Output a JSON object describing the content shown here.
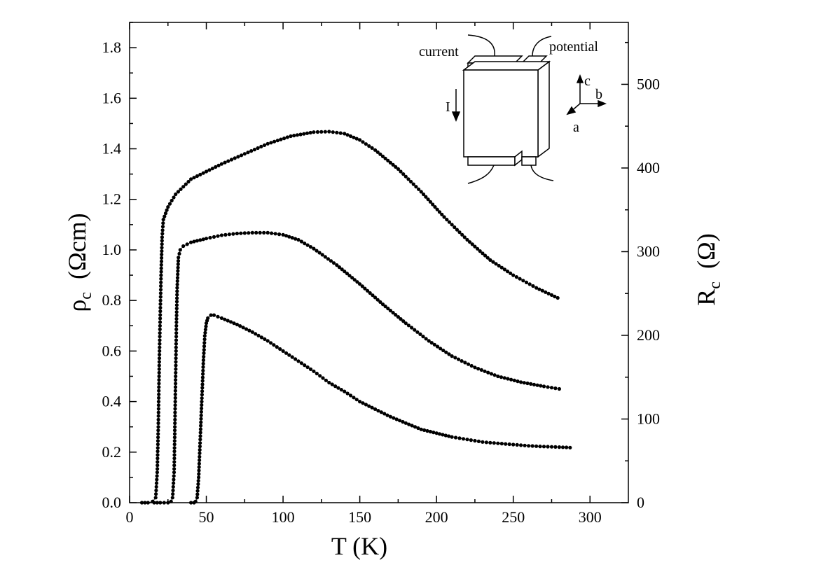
{
  "chart_data": {
    "type": "scatter",
    "xlabel": "T  (K)",
    "ylabel_left": {
      "main": "ρ",
      "sub": "c",
      "units": "(Ωcm)"
    },
    "ylabel_right": {
      "main": "R",
      "sub": "c",
      "units": "(Ω)"
    },
    "xlim": [
      0,
      325
    ],
    "ylim_left": [
      0,
      1.9
    ],
    "ylim_right": [
      0,
      574
    ],
    "x_ticks": [
      0,
      50,
      100,
      150,
      200,
      250,
      300
    ],
    "x_tick_labels": [
      "0",
      "50",
      "100",
      "150",
      "200",
      "250",
      "300"
    ],
    "y_left_ticks": [
      0,
      0.2,
      0.4,
      0.6,
      0.8,
      1.0,
      1.2,
      1.4,
      1.6,
      1.8
    ],
    "y_left_tick_labels": [
      "0.0",
      "0.2",
      "0.4",
      "0.6",
      "0.8",
      "1.0",
      "1.2",
      "1.4",
      "1.6",
      "1.8"
    ],
    "y_right_ticks": [
      0,
      100,
      200,
      300,
      400,
      500
    ],
    "y_right_tick_labels": [
      "0",
      "100",
      "200",
      "300",
      "400",
      "500"
    ],
    "grid": false,
    "marker_color": "#000000",
    "series": [
      {
        "points": [
          [
            8,
            0.0
          ],
          [
            12,
            0.0
          ],
          [
            15,
            0.005
          ],
          [
            17,
            0.02
          ],
          [
            18,
            0.12
          ],
          [
            18.7,
            0.3
          ],
          [
            19.2,
            0.5
          ],
          [
            19.8,
            0.7
          ],
          [
            20.5,
            0.9
          ],
          [
            21.2,
            1.05
          ],
          [
            22,
            1.12
          ],
          [
            25,
            1.17
          ],
          [
            30,
            1.22
          ],
          [
            40,
            1.28
          ],
          [
            50,
            1.31
          ],
          [
            60,
            1.34
          ],
          [
            75,
            1.38
          ],
          [
            90,
            1.42
          ],
          [
            105,
            1.45
          ],
          [
            120,
            1.466
          ],
          [
            130,
            1.468
          ],
          [
            140,
            1.46
          ],
          [
            150,
            1.435
          ],
          [
            160,
            1.395
          ],
          [
            175,
            1.32
          ],
          [
            190,
            1.23
          ],
          [
            205,
            1.13
          ],
          [
            220,
            1.04
          ],
          [
            235,
            0.96
          ],
          [
            250,
            0.9
          ],
          [
            265,
            0.85
          ],
          [
            279,
            0.81
          ]
        ]
      },
      {
        "points": [
          [
            16,
            0.0
          ],
          [
            20,
            0.0
          ],
          [
            25,
            0.0
          ],
          [
            27,
            0.005
          ],
          [
            28,
            0.02
          ],
          [
            29,
            0.12
          ],
          [
            29.5,
            0.3
          ],
          [
            30,
            0.5
          ],
          [
            30.5,
            0.7
          ],
          [
            31,
            0.85
          ],
          [
            31.8,
            0.97
          ],
          [
            33,
            1.0
          ],
          [
            35,
            1.015
          ],
          [
            40,
            1.03
          ],
          [
            50,
            1.045
          ],
          [
            60,
            1.058
          ],
          [
            70,
            1.065
          ],
          [
            80,
            1.068
          ],
          [
            90,
            1.068
          ],
          [
            100,
            1.06
          ],
          [
            110,
            1.04
          ],
          [
            120,
            1.005
          ],
          [
            135,
            0.94
          ],
          [
            150,
            0.865
          ],
          [
            165,
            0.785
          ],
          [
            180,
            0.71
          ],
          [
            195,
            0.64
          ],
          [
            210,
            0.58
          ],
          [
            225,
            0.535
          ],
          [
            240,
            0.5
          ],
          [
            255,
            0.477
          ],
          [
            270,
            0.46
          ],
          [
            280,
            0.45
          ]
        ]
      },
      {
        "points": [
          [
            40,
            0.0
          ],
          [
            42,
            0.0
          ],
          [
            43,
            0.005
          ],
          [
            44,
            0.02
          ],
          [
            45,
            0.1
          ],
          [
            46,
            0.25
          ],
          [
            47,
            0.4
          ],
          [
            48,
            0.55
          ],
          [
            49,
            0.66
          ],
          [
            50,
            0.71
          ],
          [
            51,
            0.73
          ],
          [
            53,
            0.742
          ],
          [
            55,
            0.742
          ],
          [
            60,
            0.73
          ],
          [
            70,
            0.705
          ],
          [
            80,
            0.675
          ],
          [
            90,
            0.64
          ],
          [
            100,
            0.6
          ],
          [
            110,
            0.56
          ],
          [
            120,
            0.52
          ],
          [
            130,
            0.475
          ],
          [
            140,
            0.44
          ],
          [
            150,
            0.4
          ],
          [
            160,
            0.37
          ],
          [
            170,
            0.34
          ],
          [
            180,
            0.315
          ],
          [
            190,
            0.29
          ],
          [
            200,
            0.275
          ],
          [
            210,
            0.26
          ],
          [
            220,
            0.25
          ],
          [
            230,
            0.24
          ],
          [
            240,
            0.235
          ],
          [
            250,
            0.23
          ],
          [
            260,
            0.225
          ],
          [
            270,
            0.222
          ],
          [
            280,
            0.22
          ],
          [
            287,
            0.218
          ]
        ]
      }
    ]
  },
  "inset": {
    "label_current": "current",
    "label_potential": "potential",
    "label_I": "I",
    "axis_c": "c",
    "axis_b": "b",
    "axis_a": "a"
  }
}
